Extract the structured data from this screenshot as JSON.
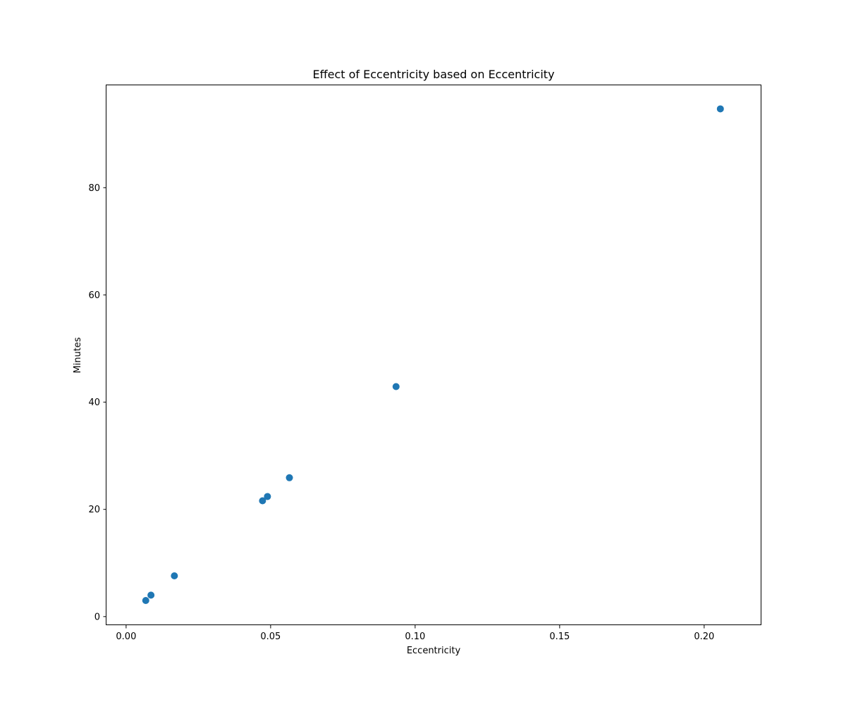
{
  "chart_data": {
    "type": "scatter",
    "title": "Effect of Eccentricity based on Eccentricity",
    "xlabel": "Eccentricity",
    "ylabel": "Minutes",
    "xlim": [
      -0.0068,
      0.2198
    ],
    "ylim": [
      -1.6,
      99.1
    ],
    "x_ticks": [
      0.0,
      0.05,
      0.1,
      0.15,
      0.2
    ],
    "x_tick_labels": [
      "0.00",
      "0.05",
      "0.10",
      "0.15",
      "0.20"
    ],
    "y_ticks": [
      0,
      20,
      40,
      60,
      80
    ],
    "y_tick_labels": [
      "0",
      "20",
      "40",
      "60",
      "80"
    ],
    "grid": false,
    "legend": false,
    "marker_color": "#1f77b4",
    "points": [
      {
        "x": 0.0068,
        "y": 3.0
      },
      {
        "x": 0.0086,
        "y": 4.0
      },
      {
        "x": 0.0167,
        "y": 7.6
      },
      {
        "x": 0.0472,
        "y": 21.6
      },
      {
        "x": 0.0489,
        "y": 22.4
      },
      {
        "x": 0.0565,
        "y": 25.9
      },
      {
        "x": 0.0934,
        "y": 42.9
      },
      {
        "x": 0.2056,
        "y": 94.7
      }
    ]
  }
}
